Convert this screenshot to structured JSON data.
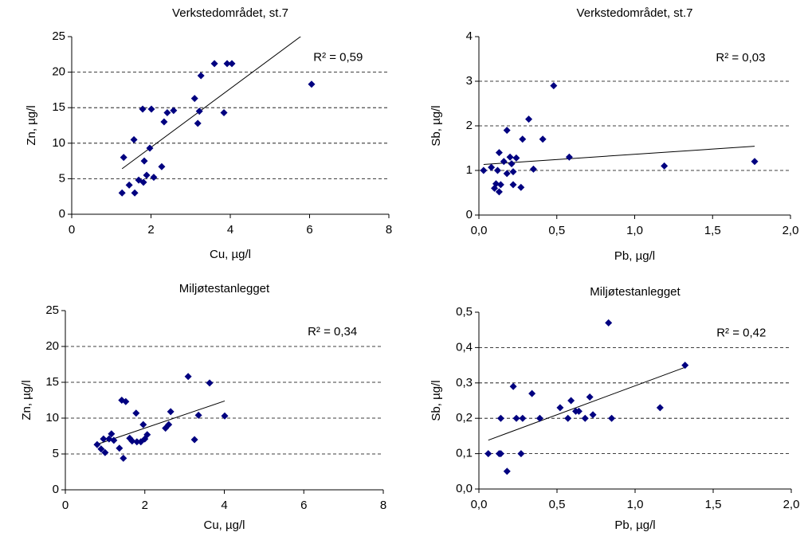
{
  "chart_data": [
    {
      "type": "scatter",
      "title": "Verkstedområdet,  st.7",
      "x_label": "Cu, µg/l",
      "y_label": "Zn, µg/l",
      "annotation": "R² = 0,59",
      "x": [
        1.27,
        1.31,
        1.45,
        1.57,
        1.59,
        1.69,
        1.79,
        1.81,
        1.83,
        1.89,
        1.97,
        2.01,
        2.07,
        2.27,
        2.33,
        2.41,
        2.57,
        3.1,
        3.18,
        3.22,
        3.26,
        3.6,
        3.92,
        4.04,
        3.84,
        6.05
      ],
      "values": [
        3.0,
        8.0,
        4.1,
        10.5,
        3.0,
        4.8,
        14.8,
        4.5,
        7.5,
        5.5,
        9.3,
        14.8,
        5.2,
        6.7,
        13.0,
        14.3,
        14.6,
        16.3,
        12.8,
        14.5,
        19.5,
        21.2,
        21.2,
        21.2,
        14.3,
        18.3
      ],
      "color": "#000080",
      "trendline": "linear",
      "xlim": [
        0,
        8
      ],
      "xticks": [
        0,
        2,
        4,
        6,
        8
      ],
      "ylim": [
        0,
        25
      ],
      "yticks": [
        0,
        5,
        10,
        15,
        20,
        25
      ],
      "grid": true
    },
    {
      "type": "scatter",
      "title": "Verkstedområdet,  st.7",
      "x_label": "Pb, µg/l",
      "y_label": "Sb, µg/l",
      "annotation": "R² = 0,03",
      "x": [
        0.03,
        0.08,
        0.1,
        0.11,
        0.12,
        0.13,
        0.13,
        0.14,
        0.16,
        0.18,
        0.18,
        0.2,
        0.21,
        0.22,
        0.22,
        0.24,
        0.27,
        0.28,
        0.32,
        0.35,
        0.41,
        0.48,
        0.58,
        1.19,
        1.77
      ],
      "values": [
        1.0,
        1.07,
        0.6,
        0.7,
        1.0,
        1.4,
        0.52,
        0.68,
        1.2,
        1.9,
        0.93,
        1.3,
        1.15,
        0.97,
        0.68,
        1.28,
        0.62,
        1.7,
        2.15,
        1.03,
        1.7,
        2.9,
        1.3,
        1.1,
        1.2
      ],
      "color": "#000080",
      "trendline": "linear",
      "xlim": [
        0,
        2
      ],
      "xticks": [
        {
          "value": 0,
          "label": "0,0"
        },
        {
          "value": 0.5,
          "label": "0,5"
        },
        {
          "value": 1,
          "label": "1,0"
        },
        {
          "value": 1.5,
          "label": "1,5"
        },
        {
          "value": 2,
          "label": "2,0"
        }
      ],
      "ylim": [
        0,
        4
      ],
      "yticks": [
        0,
        1,
        2,
        3,
        4
      ],
      "grid": true
    },
    {
      "type": "scatter",
      "title": "Miljøtestanlegget",
      "x_label": "Cu, µg/l",
      "y_label": "Zn, µg/l",
      "annotation": "R² = 0,34",
      "x": [
        0.8,
        0.9,
        0.96,
        1.0,
        1.1,
        1.16,
        1.22,
        1.36,
        1.42,
        1.46,
        1.52,
        1.62,
        1.68,
        1.78,
        1.8,
        1.9,
        1.96,
        2.0,
        2.06,
        2.52,
        2.6,
        2.65,
        3.09,
        3.25,
        3.35,
        3.63,
        4.01
      ],
      "values": [
        6.3,
        5.7,
        7.1,
        5.2,
        7.1,
        7.8,
        6.9,
        5.8,
        12.5,
        4.4,
        12.3,
        7.2,
        6.8,
        10.7,
        6.7,
        6.7,
        9.1,
        7.1,
        7.7,
        8.6,
        9.1,
        10.9,
        15.8,
        7.0,
        10.4,
        14.9,
        10.3
      ],
      "color": "#000080",
      "trendline": "linear",
      "xlim": [
        0,
        8
      ],
      "xticks": [
        0,
        2,
        4,
        6,
        8
      ],
      "ylim": [
        0,
        25
      ],
      "yticks": [
        0,
        5,
        10,
        15,
        20,
        25
      ],
      "grid": true
    },
    {
      "type": "scatter",
      "title": "Miljøtestanlegget",
      "x_label": "Pb, µg/l",
      "y_label": "Sb, µg/l",
      "annotation": "R² = 0,42",
      "x": [
        0.06,
        0.13,
        0.14,
        0.14,
        0.18,
        0.22,
        0.24,
        0.27,
        0.28,
        0.34,
        0.39,
        0.52,
        0.57,
        0.59,
        0.62,
        0.64,
        0.68,
        0.71,
        0.73,
        0.83,
        0.85,
        1.16,
        1.32
      ],
      "values": [
        0.1,
        0.1,
        0.1,
        0.2,
        0.05,
        0.29,
        0.2,
        0.1,
        0.2,
        0.27,
        0.2,
        0.23,
        0.2,
        0.25,
        0.22,
        0.22,
        0.2,
        0.26,
        0.21,
        0.47,
        0.2,
        0.23,
        0.35
      ],
      "color": "#000080",
      "trendline": "linear",
      "xlim": [
        0,
        2
      ],
      "xticks": [
        {
          "value": 0,
          "label": "0,0"
        },
        {
          "value": 0.5,
          "label": "0,5"
        },
        {
          "value": 1,
          "label": "1,0"
        },
        {
          "value": 1.5,
          "label": "1,5"
        },
        {
          "value": 2,
          "label": "2,0"
        }
      ],
      "ylim": [
        0,
        0.5
      ],
      "yticks": [
        {
          "value": 0,
          "label": "0,0"
        },
        {
          "value": 0.1,
          "label": "0,1"
        },
        {
          "value": 0.2,
          "label": "0,2"
        },
        {
          "value": 0.3,
          "label": "0,3"
        },
        {
          "value": 0.4,
          "label": "0,4"
        },
        {
          "value": 0.5,
          "label": "0,5"
        }
      ],
      "grid": true
    }
  ]
}
